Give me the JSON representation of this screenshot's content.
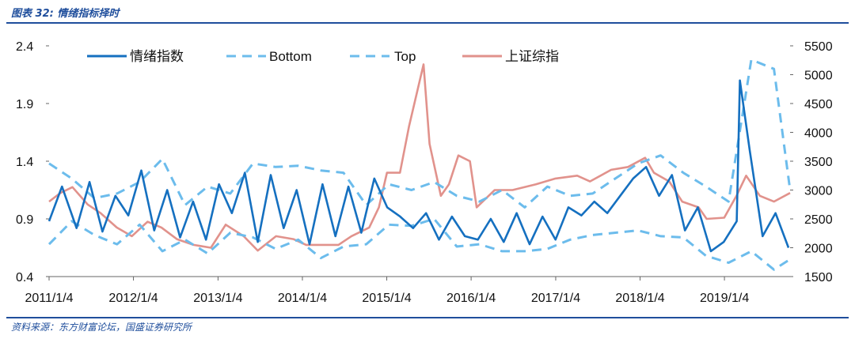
{
  "figure": {
    "title": "图表 32: 情绪指标择时",
    "source": "资料来源：东方财富论坛，国盛证券研究所"
  },
  "colors": {
    "brand": "#1f4e9c",
    "sentiment": "#1570c0",
    "bands": "#6cbcec",
    "index": "#e1928c"
  },
  "chart_data": {
    "type": "line",
    "x_tick_labels": [
      "2011/1/4",
      "2012/1/4",
      "2013/1/4",
      "2014/1/4",
      "2015/1/4",
      "2016/1/4",
      "2017/1/4",
      "2018/1/4",
      "2019/1/4"
    ],
    "xlim": [
      "2011/1/4",
      "2019/10/15"
    ],
    "y_left": {
      "ylim": [
        0.4,
        2.4
      ],
      "ticks": [
        "0.4",
        "0.9",
        "1.4",
        "1.9",
        "2.4"
      ]
    },
    "y_right": {
      "ylim": [
        1500,
        5500
      ],
      "ticks": [
        "1500",
        "2000",
        "2500",
        "3000",
        "3500",
        "4000",
        "4500",
        "5000",
        "5500"
      ]
    },
    "legend_position": "top",
    "series": [
      {
        "name": "情绪指数",
        "axis": "left",
        "style": "solid-dark-blue",
        "x": [
          "2011/1/4",
          "2011/3/1",
          "2011/5/3",
          "2011/6/28",
          "2011/8/23",
          "2011/10/18",
          "2011/12/13",
          "2012/2/7",
          "2012/4/3",
          "2012/5/29",
          "2012/7/24",
          "2012/9/18",
          "2012/11/13",
          "2013/1/8",
          "2013/3/5",
          "2013/4/30",
          "2013/6/25",
          "2013/8/20",
          "2013/10/15",
          "2013/12/10",
          "2014/2/4",
          "2014/4/1",
          "2014/5/27",
          "2014/7/22",
          "2014/9/16",
          "2014/11/11",
          "2015/1/6",
          "2015/3/3",
          "2015/4/28",
          "2015/6/23",
          "2015/8/18",
          "2015/10/13",
          "2015/12/8",
          "2016/2/2",
          "2016/3/29",
          "2016/5/24",
          "2016/7/19",
          "2016/9/13",
          "2016/11/8",
          "2017/1/3",
          "2017/2/28",
          "2017/4/25",
          "2017/6/20",
          "2017/8/15",
          "2017/10/10",
          "2017/12/5",
          "2018/1/30",
          "2018/3/27",
          "2018/5/22",
          "2018/7/17",
          "2018/9/11",
          "2018/11/6",
          "2019/1/1",
          "2019/2/26",
          "2019/3/12",
          "2019/4/23",
          "2019/6/18",
          "2019/8/13",
          "2019/10/8"
        ],
        "values": [
          0.88,
          1.18,
          0.82,
          1.22,
          0.79,
          1.1,
          0.93,
          1.32,
          0.8,
          1.15,
          0.74,
          1.05,
          0.72,
          1.2,
          0.95,
          1.3,
          0.7,
          1.28,
          0.82,
          1.15,
          0.68,
          1.2,
          0.75,
          1.18,
          0.78,
          1.25,
          1.0,
          0.92,
          0.82,
          0.95,
          0.72,
          0.92,
          0.75,
          0.72,
          0.9,
          0.7,
          0.95,
          0.68,
          0.92,
          0.72,
          1.0,
          0.93,
          1.05,
          0.95,
          1.1,
          1.25,
          1.35,
          1.1,
          1.28,
          0.8,
          1.0,
          0.62,
          0.7,
          0.88,
          2.1,
          1.5,
          0.75,
          0.95,
          0.65
        ]
      },
      {
        "name": "Bottom",
        "axis": "left",
        "style": "dashed-light-blue",
        "x": [
          "2011/1/4",
          "2011/4/12",
          "2011/7/19",
          "2011/10/25",
          "2012/1/31",
          "2012/5/8",
          "2012/8/14",
          "2012/11/20",
          "2013/2/26",
          "2013/6/4",
          "2013/9/10",
          "2013/12/17",
          "2014/3/25",
          "2014/7/1",
          "2014/10/7",
          "2015/1/13",
          "2015/4/21",
          "2015/7/28",
          "2015/11/3",
          "2016/2/9",
          "2016/5/17",
          "2016/8/23",
          "2016/11/29",
          "2017/3/7",
          "2017/6/13",
          "2017/9/19",
          "2017/12/26",
          "2018/4/3",
          "2018/7/10",
          "2018/10/16",
          "2019/1/22",
          "2019/4/30",
          "2019/8/6",
          "2019/10/15"
        ],
        "values": [
          0.68,
          0.88,
          0.76,
          0.68,
          0.85,
          0.62,
          0.72,
          0.6,
          0.78,
          0.74,
          0.64,
          0.72,
          0.56,
          0.66,
          0.68,
          0.85,
          0.84,
          0.9,
          0.66,
          0.68,
          0.62,
          0.62,
          0.64,
          0.72,
          0.76,
          0.78,
          0.8,
          0.75,
          0.74,
          0.58,
          0.52,
          0.62,
          0.46,
          0.55
        ]
      },
      {
        "name": "Top",
        "axis": "left",
        "style": "dashed-light-blue",
        "x": [
          "2011/1/4",
          "2011/4/12",
          "2011/7/19",
          "2011/10/25",
          "2012/1/31",
          "2012/5/8",
          "2012/8/14",
          "2012/11/20",
          "2013/2/26",
          "2013/6/4",
          "2013/9/10",
          "2013/12/17",
          "2014/3/25",
          "2014/7/1",
          "2014/10/7",
          "2015/1/13",
          "2015/4/21",
          "2015/7/28",
          "2015/11/3",
          "2016/2/9",
          "2016/5/17",
          "2016/8/23",
          "2016/11/29",
          "2017/3/7",
          "2017/6/13",
          "2017/9/19",
          "2017/12/26",
          "2018/4/3",
          "2018/7/10",
          "2018/10/16",
          "2019/1/22",
          "2019/4/30",
          "2019/8/6",
          "2019/10/15"
        ],
        "values": [
          1.38,
          1.25,
          1.08,
          1.12,
          1.22,
          1.42,
          1.02,
          1.18,
          1.12,
          1.38,
          1.35,
          1.36,
          1.32,
          1.3,
          1.02,
          1.2,
          1.15,
          1.22,
          1.1,
          1.05,
          1.15,
          1.0,
          1.18,
          1.1,
          1.12,
          1.25,
          1.38,
          1.45,
          1.3,
          1.18,
          1.05,
          2.28,
          2.2,
          1.15
        ]
      },
      {
        "name": "上证综指",
        "axis": "right",
        "style": "solid-pink",
        "x": [
          "2011/1/4",
          "2011/2/22",
          "2011/4/15",
          "2011/6/20",
          "2011/8/15",
          "2011/10/24",
          "2011/12/28",
          "2012/3/5",
          "2012/5/4",
          "2012/7/10",
          "2012/9/20",
          "2012/12/4",
          "2013/2/6",
          "2013/4/25",
          "2013/6/25",
          "2013/9/12",
          "2013/11/26",
          "2014/1/20",
          "2014/3/31",
          "2014/6/9",
          "2014/8/4",
          "2014/10/20",
          "2014/12/1",
          "2015/1/5",
          "2015/3/2",
          "2015/4/10",
          "2015/6/12",
          "2015/7/8",
          "2015/8/26",
          "2015/9/30",
          "2015/11/10",
          "2015/12/30",
          "2016/1/28",
          "2016/4/15",
          "2016/7/1",
          "2016/10/10",
          "2017/1/3",
          "2017/4/7",
          "2017/6/1",
          "2017/9/1",
          "2017/11/13",
          "2018/1/26",
          "2018/3/5",
          "2018/5/10",
          "2018/7/5",
          "2018/9/14",
          "2018/10/19",
          "2019/1/3",
          "2019/2/25",
          "2019/4/8",
          "2019/6/6",
          "2019/8/6",
          "2019/10/15"
        ],
        "values": [
          2800,
          2950,
          3050,
          2750,
          2600,
          2350,
          2200,
          2450,
          2350,
          2150,
          2050,
          2000,
          2400,
          2200,
          1950,
          2200,
          2150,
          2050,
          2050,
          2050,
          2200,
          2350,
          2700,
          3300,
          3300,
          4100,
          5178,
          3800,
          2900,
          3100,
          3600,
          3500,
          2700,
          3000,
          3000,
          3100,
          3200,
          3250,
          3150,
          3350,
          3400,
          3559,
          3300,
          3150,
          2800,
          2700,
          2500,
          2520,
          2900,
          3250,
          2900,
          2800,
          2950
        ]
      }
    ]
  }
}
